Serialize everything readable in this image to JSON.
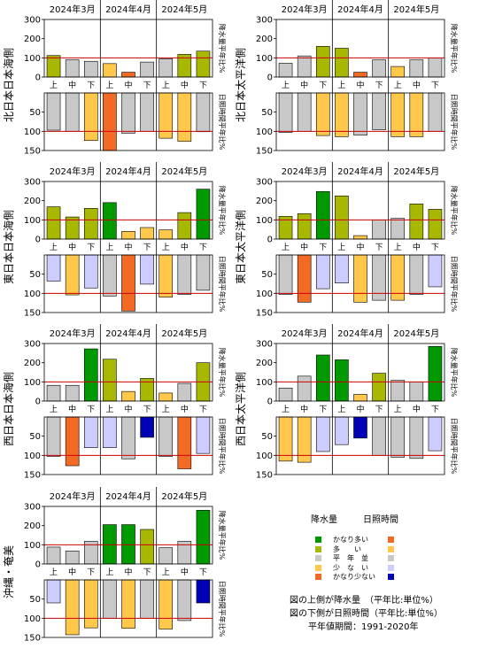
{
  "colors": {
    "precip": {
      "very_much": "#009900",
      "much": "#a8b800",
      "normal": "#c8c8c8",
      "little": "#ffc84a",
      "very_little": "#f26a24"
    },
    "sun": {
      "very_much": "#f26a24",
      "much": "#ffc84a",
      "normal": "#c8c8c8",
      "little": "#ccccff",
      "very_little": "#0000b4"
    },
    "reference_line": "#cc0000"
  },
  "months": [
    "2024年3月",
    "2024年4月",
    "2024年5月"
  ],
  "dekads": [
    "上",
    "中",
    "下",
    "上",
    "中",
    "下",
    "上",
    "中",
    "下"
  ],
  "side_label_precip": "降水量平年比%",
  "side_label_sun": "日照時間平年比%",
  "chart_data": [
    {
      "type": "bar",
      "region": "北日本日本海側",
      "precip": {
        "ylim": [
          0,
          300
        ],
        "yticks": [
          0,
          100,
          200,
          300
        ],
        "reference": 100,
        "values": [
          112,
          90,
          82,
          70,
          25,
          78,
          95,
          118,
          135
        ],
        "classes": [
          "much",
          "normal",
          "normal",
          "little",
          "very_little",
          "normal",
          "normal",
          "much",
          "much"
        ]
      },
      "sun": {
        "ylim": [
          0,
          150
        ],
        "yticks": [
          50,
          100,
          150
        ],
        "reference": 100,
        "values": [
          97,
          100,
          124,
          150,
          105,
          100,
          118,
          126,
          101
        ],
        "classes": [
          "normal",
          "normal",
          "much",
          "very_much",
          "normal",
          "normal",
          "much",
          "much",
          "normal"
        ]
      }
    },
    {
      "type": "bar",
      "region": "北日本太平洋側",
      "precip": {
        "ylim": [
          0,
          300
        ],
        "yticks": [
          0,
          100,
          200,
          300
        ],
        "reference": 100,
        "values": [
          72,
          110,
          160,
          150,
          25,
          90,
          55,
          90,
          100
        ],
        "classes": [
          "normal",
          "normal",
          "much",
          "much",
          "very_little",
          "normal",
          "little",
          "normal",
          "normal"
        ]
      },
      "sun": {
        "ylim": [
          0,
          150
        ],
        "yticks": [
          50,
          100,
          150
        ],
        "reference": 100,
        "values": [
          103,
          100,
          111,
          114,
          110,
          96,
          114,
          114,
          100
        ],
        "classes": [
          "normal",
          "normal",
          "much",
          "much",
          "normal",
          "normal",
          "much",
          "much",
          "normal"
        ]
      }
    },
    {
      "type": "bar",
      "region": "東日本日本海側",
      "precip": {
        "ylim": [
          0,
          300
        ],
        "yticks": [
          0,
          100,
          200,
          300
        ],
        "reference": 100,
        "values": [
          168,
          115,
          160,
          190,
          40,
          60,
          48,
          138,
          260
        ],
        "classes": [
          "much",
          "much",
          "much",
          "very_much",
          "little",
          "little",
          "little",
          "much",
          "very_much"
        ]
      },
      "sun": {
        "ylim": [
          0,
          150
        ],
        "yticks": [
          50,
          100,
          150
        ],
        "reference": 100,
        "values": [
          68,
          104,
          86,
          107,
          146,
          76,
          110,
          103,
          92
        ],
        "classes": [
          "little",
          "much",
          "little",
          "normal",
          "very_much",
          "little",
          "much",
          "normal",
          "normal"
        ]
      }
    },
    {
      "type": "bar",
      "region": "東日本太平洋側",
      "precip": {
        "ylim": [
          0,
          300
        ],
        "yticks": [
          0,
          100,
          200,
          300
        ],
        "reference": 100,
        "values": [
          118,
          132,
          248,
          225,
          18,
          100,
          108,
          183,
          155
        ],
        "classes": [
          "much",
          "much",
          "very_much",
          "much",
          "little",
          "normal",
          "normal",
          "much",
          "much"
        ]
      },
      "sun": {
        "ylim": [
          0,
          150
        ],
        "yticks": [
          50,
          100,
          150
        ],
        "reference": 100,
        "values": [
          103,
          123,
          88,
          73,
          123,
          118,
          118,
          103,
          83
        ],
        "classes": [
          "normal",
          "very_much",
          "little",
          "little",
          "much",
          "normal",
          "much",
          "normal",
          "little"
        ]
      }
    },
    {
      "type": "bar",
      "region": "西日本日本海側",
      "precip": {
        "ylim": [
          0,
          300
        ],
        "yticks": [
          0,
          100,
          200,
          300
        ],
        "reference": 100,
        "values": [
          82,
          82,
          272,
          218,
          50,
          118,
          42,
          92,
          200
        ],
        "classes": [
          "normal",
          "normal",
          "very_much",
          "much",
          "little",
          "much",
          "little",
          "normal",
          "much"
        ]
      },
      "sun": {
        "ylim": [
          0,
          150
        ],
        "yticks": [
          50,
          100,
          150
        ],
        "reference": 100,
        "values": [
          103,
          127,
          80,
          80,
          109,
          53,
          103,
          135,
          95
        ],
        "classes": [
          "normal",
          "very_much",
          "little",
          "little",
          "normal",
          "very_little",
          "normal",
          "very_much",
          "little"
        ]
      }
    },
    {
      "type": "bar",
      "region": "西日本太平洋側",
      "precip": {
        "ylim": [
          0,
          300
        ],
        "yticks": [
          0,
          100,
          200,
          300
        ],
        "reference": 100,
        "values": [
          68,
          130,
          240,
          215,
          35,
          145,
          108,
          100,
          285
        ],
        "classes": [
          "normal",
          "normal",
          "very_much",
          "very_much",
          "little",
          "much",
          "normal",
          "normal",
          "very_much"
        ]
      },
      "sun": {
        "ylim": [
          0,
          150
        ],
        "yticks": [
          50,
          100,
          150
        ],
        "reference": 100,
        "values": [
          115,
          118,
          90,
          72,
          55,
          100,
          105,
          108,
          88
        ],
        "classes": [
          "much",
          "much",
          "little",
          "little",
          "very_little",
          "normal",
          "normal",
          "normal",
          "little"
        ]
      }
    },
    {
      "type": "bar",
      "region": "沖縄・奄美",
      "precip": {
        "ylim": [
          0,
          300
        ],
        "yticks": [
          0,
          100,
          200,
          300
        ],
        "reference": 100,
        "values": [
          88,
          68,
          118,
          205,
          205,
          180,
          85,
          118,
          280
        ],
        "classes": [
          "normal",
          "normal",
          "normal",
          "very_much",
          "very_much",
          "much",
          "normal",
          "normal",
          "very_much"
        ]
      },
      "sun": {
        "ylim": [
          0,
          150
        ],
        "yticks": [
          50,
          100,
          150
        ],
        "reference": 100,
        "values": [
          60,
          143,
          125,
          100,
          126,
          100,
          128,
          106,
          60
        ],
        "classes": [
          "little",
          "much",
          "much",
          "normal",
          "much",
          "normal",
          "much",
          "normal",
          "very_little"
        ]
      }
    }
  ],
  "legend": {
    "header_precip": "降水量",
    "header_sun": "日照時間",
    "rows": [
      {
        "key": "very_much",
        "label": "かなり多い"
      },
      {
        "key": "much",
        "label": "多　　い"
      },
      {
        "key": "normal",
        "label": "平　年　並"
      },
      {
        "key": "little",
        "label": "少　な　い"
      },
      {
        "key": "very_little",
        "label": "かなり少ない"
      }
    ],
    "note1": "図の上側が降水量　（平年比:単位%）",
    "note2": "図の下側が日照時間（平年比:単位%）",
    "note3": "平年値期間：1991-2020年"
  }
}
